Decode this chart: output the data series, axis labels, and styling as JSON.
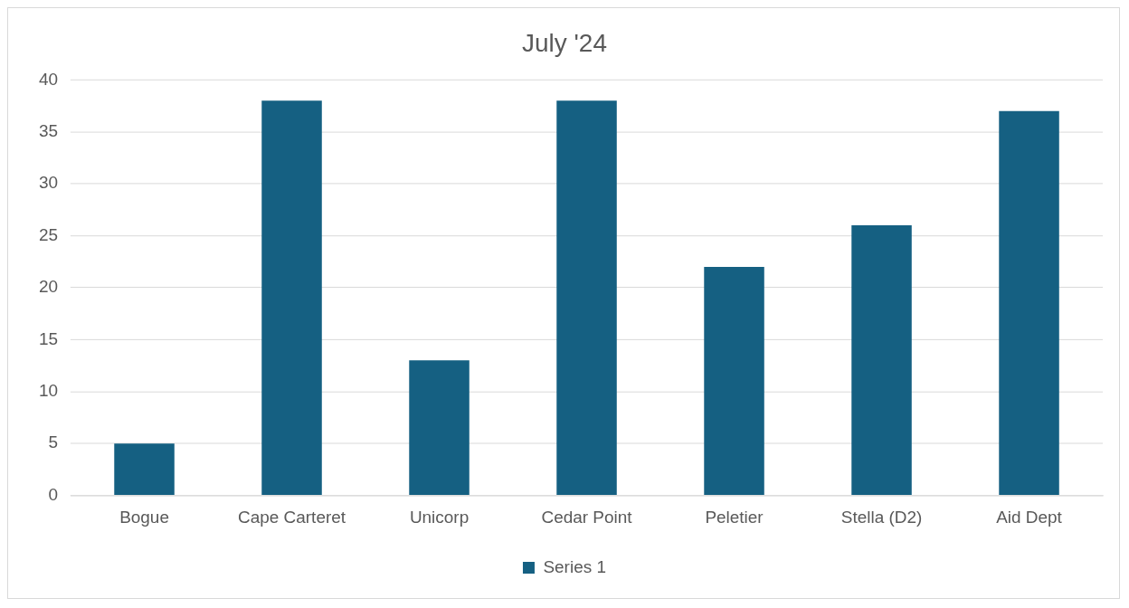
{
  "chart_data": {
    "type": "bar",
    "title": "July '24",
    "categories": [
      "Bogue",
      "Cape Carteret",
      "Unicorp",
      "Cedar Point",
      "Peletier",
      "Stella (D2)",
      "Aid Dept"
    ],
    "series": [
      {
        "name": "Series 1",
        "color": "#156082",
        "values": [
          5,
          38,
          13,
          38,
          22,
          26,
          37
        ]
      }
    ],
    "ylim": [
      0,
      40
    ],
    "yticks": [
      0,
      5,
      10,
      15,
      20,
      25,
      30,
      35,
      40
    ],
    "grid": "y",
    "legend": "bottom"
  }
}
